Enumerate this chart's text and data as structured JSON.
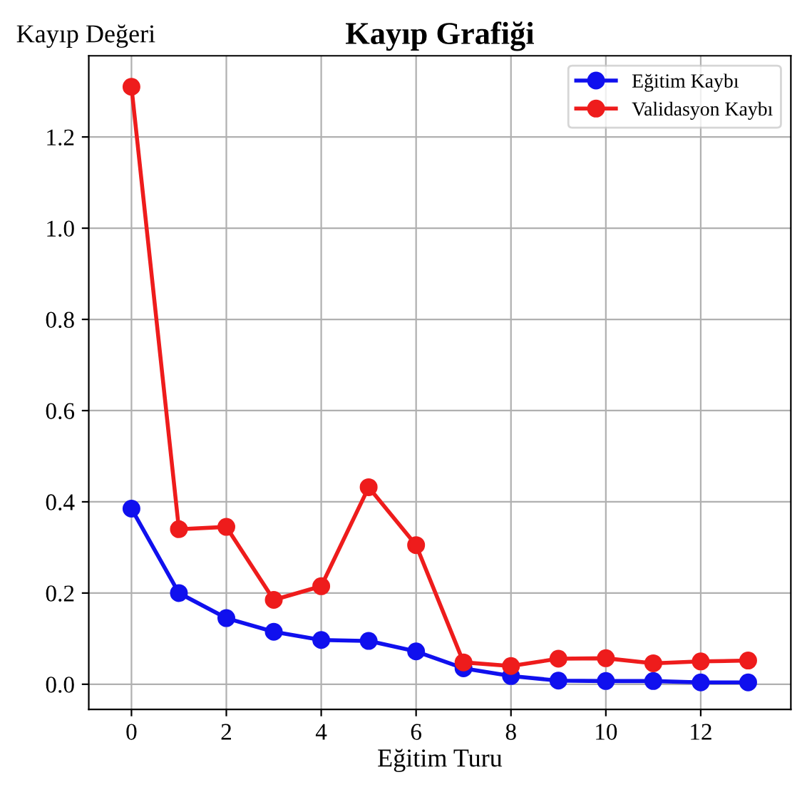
{
  "chart_data": {
    "type": "line",
    "title": "Kayıp Grafiği",
    "xlabel": "Eğitim Turu",
    "ylabel": "Kayıp Değeri",
    "x": [
      0,
      1,
      2,
      3,
      4,
      5,
      6,
      7,
      8,
      9,
      10,
      11,
      12,
      13
    ],
    "series": [
      {
        "name": "Eğitim Kaybı",
        "color": "#1010ee",
        "values": [
          0.385,
          0.2,
          0.145,
          0.115,
          0.097,
          0.095,
          0.072,
          0.035,
          0.018,
          0.008,
          0.007,
          0.007,
          0.004,
          0.004
        ]
      },
      {
        "name": "Validasyon Kaybı",
        "color": "#ee1c1c",
        "values": [
          1.31,
          0.34,
          0.345,
          0.185,
          0.215,
          0.432,
          0.305,
          0.048,
          0.04,
          0.056,
          0.057,
          0.046,
          0.05,
          0.052
        ]
      }
    ],
    "xlim": [
      -0.9,
      13.9
    ],
    "ylim": [
      -0.055,
      1.378
    ],
    "xticks": [
      0,
      2,
      4,
      6,
      8,
      10,
      12
    ],
    "yticks": [
      {
        "value": 0,
        "label": "0.0"
      },
      0.2,
      0.4,
      0.6,
      0.8,
      {
        "value": 1,
        "label": "1.0"
      },
      1.2
    ],
    "grid": true,
    "legend": "top right",
    "marker": "circle",
    "line_style": "solid"
  }
}
